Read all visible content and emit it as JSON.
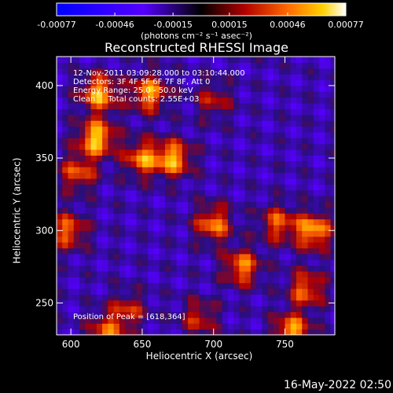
{
  "chart_data": {
    "type": "heatmap",
    "title": "Reconstructed RHESSI Image",
    "xlabel": "Heliocentric X (arcsec)",
    "ylabel": "Heliocentric Y (arcsec)",
    "xlim": [
      590,
      785
    ],
    "ylim": [
      228,
      420
    ],
    "x_ticks": [
      600,
      650,
      700,
      750
    ],
    "y_ticks": [
      250,
      300,
      350,
      400
    ],
    "colorbar": {
      "range": [
        -0.00077,
        0.00077
      ],
      "tick_values": [
        -0.00077,
        -0.00046,
        -0.00015,
        0.00015,
        0.00046,
        0.00077
      ],
      "tick_labels": [
        "-0.00077",
        "-0.00046",
        "-0.00015",
        "0.00015",
        "0.00046",
        "0.00077"
      ],
      "unit_label": "(photons cm⁻² s⁻¹ asec⁻²)"
    },
    "annotations": {
      "time_range": "12-Nov-2011 03:09:28.000 to 03:10:44.000",
      "detectors": "Detectors: 3F 4F 5F 6F 7F 8F, Att 0",
      "energy_range": "Energy Range: 25.0 - 50.0 keV",
      "method_counts": "Clean     Total counts: 2.55E+03",
      "peak_position": "Position of Peak = [618,364]"
    },
    "bright_features": [
      {
        "x": 618,
        "y": 364,
        "value": 0.00077
      },
      {
        "x": 620,
        "y": 395,
        "value": 0.0007
      },
      {
        "x": 655,
        "y": 395,
        "value": 0.00065
      },
      {
        "x": 650,
        "y": 350,
        "value": 0.0006
      },
      {
        "x": 672,
        "y": 350,
        "value": 0.00068
      },
      {
        "x": 605,
        "y": 340,
        "value": 0.0005
      },
      {
        "x": 598,
        "y": 300,
        "value": 0.00055
      },
      {
        "x": 700,
        "y": 305,
        "value": 0.0006
      },
      {
        "x": 770,
        "y": 300,
        "value": 0.0007
      },
      {
        "x": 745,
        "y": 305,
        "value": 0.0005
      },
      {
        "x": 720,
        "y": 275,
        "value": 0.0006
      },
      {
        "x": 765,
        "y": 260,
        "value": 0.00055
      },
      {
        "x": 755,
        "y": 230,
        "value": 0.0007
      },
      {
        "x": 640,
        "y": 245,
        "value": 0.0004
      },
      {
        "x": 625,
        "y": 230,
        "value": 0.0005
      },
      {
        "x": 700,
        "y": 390,
        "value": 0.00035
      },
      {
        "x": 690,
        "y": 240,
        "value": 0.0004
      }
    ]
  },
  "footer": {
    "timestamp": "16-May-2022 02:50"
  }
}
